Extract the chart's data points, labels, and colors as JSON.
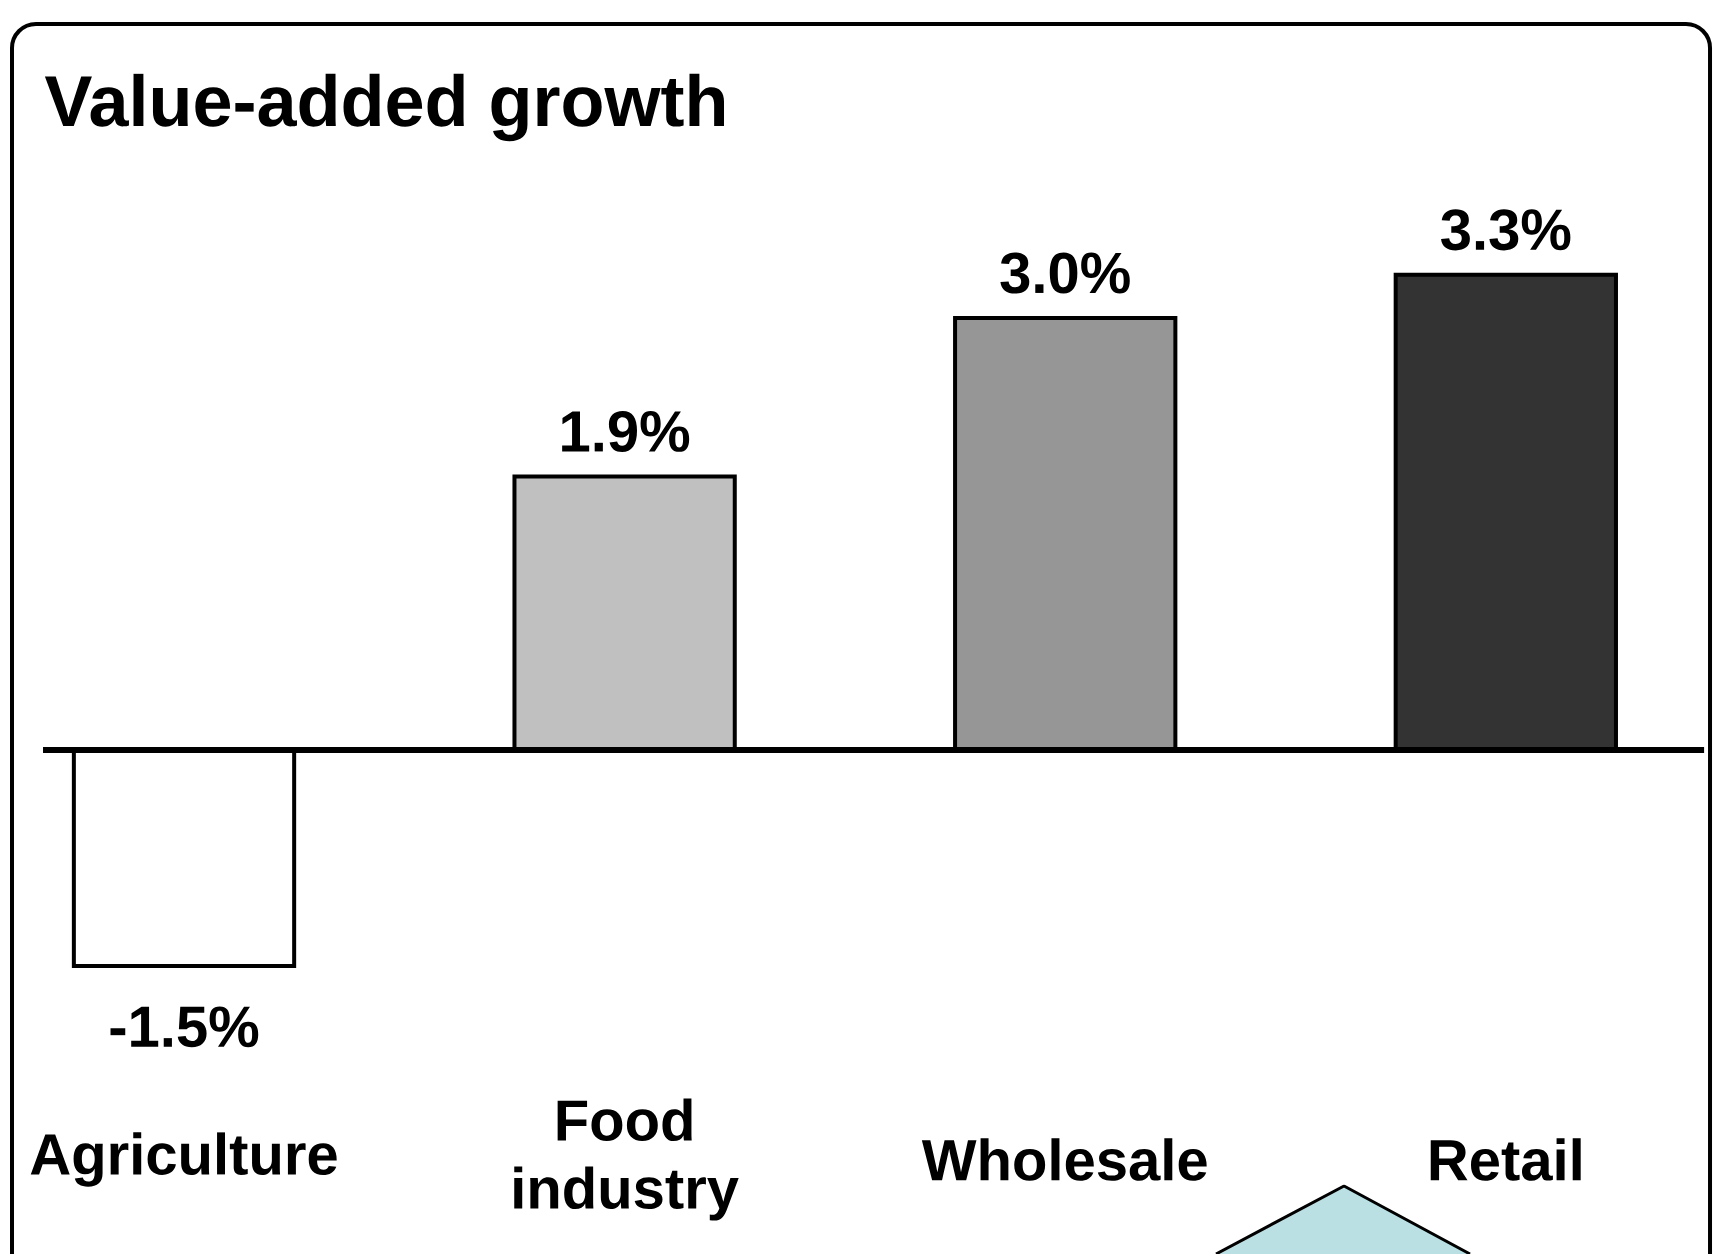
{
  "chart_data": {
    "type": "bar",
    "title": "Value-added growth",
    "categories": [
      "Agriculture",
      "Food industry",
      "Wholesale",
      "Retail"
    ],
    "values": [
      -1.5,
      1.9,
      3.0,
      3.3
    ],
    "colors": [
      "#ffffff",
      "#c0c0c0",
      "#969696",
      "#333333"
    ],
    "value_labels": [
      "-1.5%",
      "1.9%",
      "3.0%",
      "3.3%"
    ]
  }
}
